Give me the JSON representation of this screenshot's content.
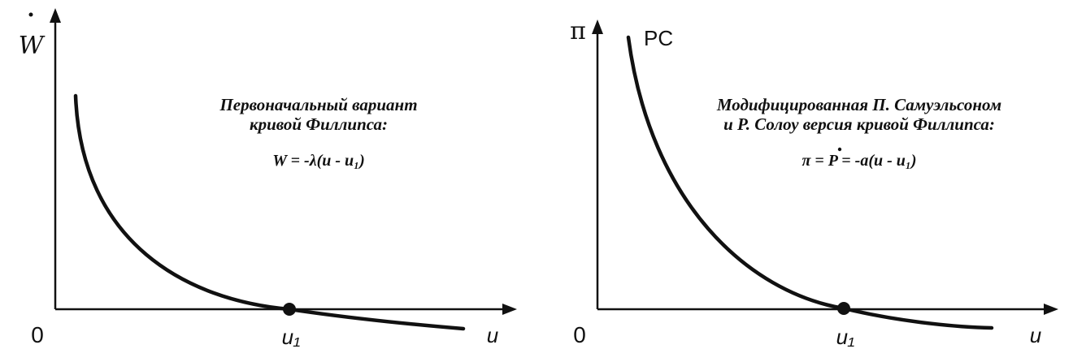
{
  "left_panel": {
    "y_axis_label": "W",
    "x_axis_label": "u",
    "origin_label": "0",
    "point_label": "u₁",
    "caption_line1": "Первоначальный вариант",
    "caption_line2": "кривой Филлипса:",
    "formula": "W = -λ(u - u₁)"
  },
  "right_panel": {
    "y_axis_label": "π",
    "x_axis_label": "u",
    "origin_label": "0",
    "point_label": "u₁",
    "curve_label": "PC",
    "caption_line1": "Модифицированная П. Самуэльсоном",
    "caption_line2": "и Р. Солоу версия кривой Филлипса:",
    "formula": "π = P = -a(u - u₁)"
  },
  "colors": {
    "ink": "#111111",
    "background": "#ffffff"
  }
}
